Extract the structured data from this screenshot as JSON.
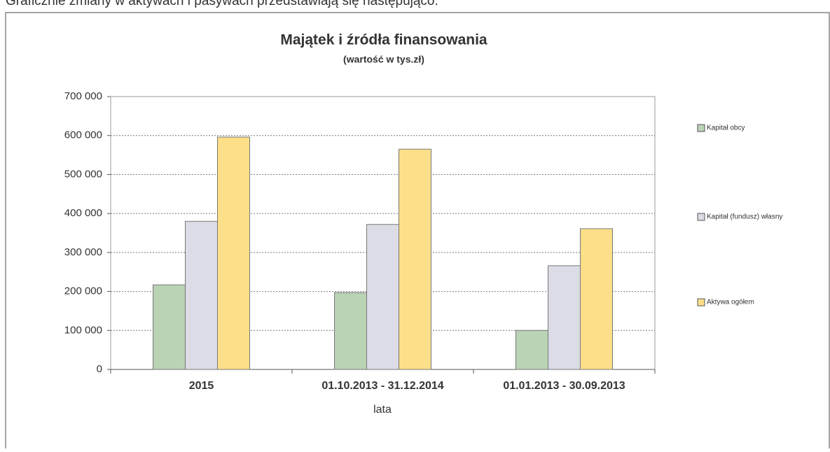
{
  "intro": "Graficznie zmiany w aktywach i pasywach przedstawiają się następująco:",
  "chart_data": {
    "type": "bar",
    "title": "Majątek i źródła finansowania",
    "subtitle": "(wartość w tys.zł)",
    "x_label": "lata",
    "categories": [
      "2015",
      "01.10.2013 - 31.12.2014",
      "01.01.2013 - 30.09.2013"
    ],
    "series": [
      {
        "name": "Kapitał obcy",
        "color": "#b9d3b4",
        "values": [
          217000,
          197000,
          100000
        ]
      },
      {
        "name": "Kapitał (fundusz) własny",
        "color": "#dcdce6",
        "values": [
          380000,
          372000,
          266000
        ]
      },
      {
        "name": "Aktywa ogółem",
        "color": "#fddf8a",
        "values": [
          596000,
          565000,
          361000
        ]
      }
    ],
    "ylim": [
      0,
      700000
    ],
    "yticks": [
      0,
      {
        "value": 100000,
        "label": "100 000"
      },
      {
        "value": 200000,
        "label": "200 000"
      },
      {
        "value": 300000,
        "label": "300 000"
      },
      {
        "value": 400000,
        "label": "400 000"
      },
      {
        "value": 500000,
        "label": "500 000"
      },
      {
        "value": 600000,
        "label": "600 000"
      },
      {
        "value": 700000,
        "label": "700 000"
      }
    ],
    "grid": true,
    "legend": "right"
  }
}
